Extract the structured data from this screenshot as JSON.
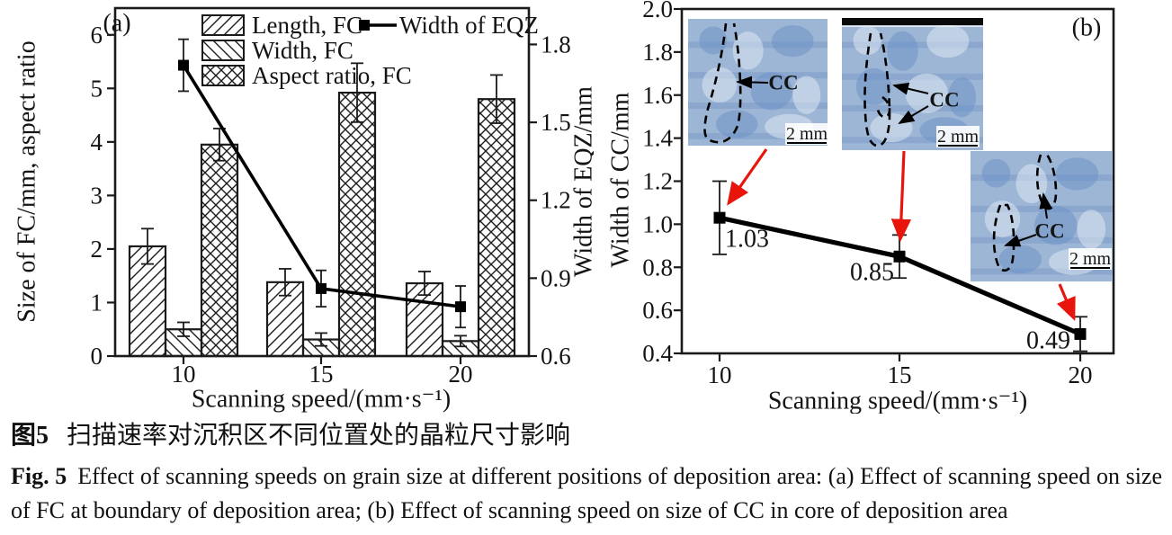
{
  "figure": {
    "panel_a_label": "(a)",
    "panel_b_label": "(b)"
  },
  "colors": {
    "axis": "#1a1a1a",
    "bar_outline": "#1a1a1a",
    "series_line": "#000000",
    "arrow_red": "#e8150c",
    "inset_base": "#9db6d6",
    "inset_band": "#7e9dc8",
    "inset_light": "#dde7f3",
    "inset_dark": "#6d93c6"
  },
  "chart_data": [
    {
      "id": "a",
      "type": "bar",
      "panel_label": "(a)",
      "categories": [
        "10",
        "15",
        "20"
      ],
      "xlabel": "Scanning speed/(mm·s⁻¹)",
      "ylabel_left": "Size of FC/mm, aspect ratio",
      "ylabel_right": "Width of EQZ/mm",
      "ylim_left": [
        0,
        6.5
      ],
      "yticks_left": [
        "0",
        "1",
        "2",
        "3",
        "4",
        "5",
        "6"
      ],
      "ylim_right": [
        0.6,
        1.94
      ],
      "yticks_right": [
        "0.6",
        "0.9",
        "1.2",
        "1.5",
        "1.8"
      ],
      "legend_position": "top-inside",
      "grid": false,
      "series": [
        {
          "name": "Length, FC",
          "type": "bar",
          "axis": "left",
          "hatch": "diag-up",
          "values": [
            2.05,
            1.38,
            1.36
          ],
          "errors": [
            0.33,
            0.25,
            0.22
          ]
        },
        {
          "name": "Width, FC",
          "type": "bar",
          "axis": "left",
          "hatch": "diag-down",
          "values": [
            0.5,
            0.31,
            0.28
          ],
          "errors": [
            0.13,
            0.12,
            0.1
          ]
        },
        {
          "name": "Aspect ratio, FC",
          "type": "bar",
          "axis": "left",
          "hatch": "crosshatch",
          "values": [
            3.95,
            4.92,
            4.8
          ],
          "errors": [
            0.3,
            0.55,
            0.45
          ]
        },
        {
          "name": "Width of EQZ",
          "type": "line",
          "axis": "right",
          "marker": "square",
          "values": [
            1.72,
            0.86,
            0.79
          ],
          "errors": [
            0.1,
            0.07,
            0.08
          ]
        }
      ]
    },
    {
      "id": "b",
      "type": "line",
      "panel_label": "(b)",
      "x": [
        "10",
        "15",
        "20"
      ],
      "xlabel": "Scanning speed/(mm·s⁻¹)",
      "ylabel": "Width of CC/mm",
      "ylim": [
        0.4,
        2.0
      ],
      "yticks": [
        "0.4",
        "0.6",
        "0.8",
        "1.0",
        "1.2",
        "1.4",
        "1.6",
        "1.8",
        "2.0"
      ],
      "grid": false,
      "series": [
        {
          "name": "Width of CC",
          "type": "line",
          "marker": "square",
          "values": [
            1.03,
            0.85,
            0.49
          ],
          "errors": [
            0.17,
            0.1,
            0.08
          ],
          "point_labels": [
            "1.03",
            "0.85",
            "0.49"
          ]
        }
      ],
      "insets": [
        {
          "name": "micrograph-speed-10",
          "grain_label": "CC",
          "scale_label": "2 mm"
        },
        {
          "name": "micrograph-speed-15",
          "grain_label": "CC",
          "scale_label": "2 mm"
        },
        {
          "name": "micrograph-speed-20",
          "grain_label": "CC",
          "scale_label": "2 mm"
        }
      ]
    }
  ],
  "caption": {
    "zh_label": "图5",
    "zh_text": "扫描速率对沉积区不同位置处的晶粒尺寸影响",
    "en_label": "Fig. 5",
    "en_text": "Effect of scanning speeds on grain size at different positions of deposition area: (a) Effect of scanning speed on size of FC at boundary of deposition area; (b) Effect of scanning speed on size of CC in core of deposition area"
  }
}
